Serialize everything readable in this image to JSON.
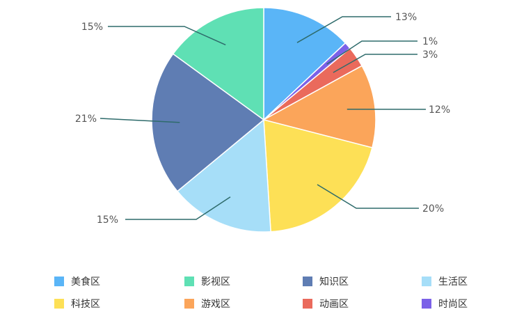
{
  "chart_data": {
    "type": "pie",
    "categories": [
      "美食区",
      "时尚区",
      "动画区",
      "游戏区",
      "科技区",
      "生活区",
      "知识区",
      "影视区"
    ],
    "values": [
      13,
      1,
      3,
      12,
      20,
      15,
      21,
      15
    ],
    "labels": [
      "13%",
      "1%",
      "3%",
      "12%",
      "20%",
      "15%",
      "21%",
      "15%"
    ],
    "colors": [
      "#5ab5f7",
      "#7b61e8",
      "#ea6a5c",
      "#fba55a",
      "#fde056",
      "#a6def8",
      "#5f7db3",
      "#5fe0b4"
    ],
    "legend": {
      "placement": "bottom",
      "items": [
        {
          "name": "美食区",
          "color": "#5ab5f7"
        },
        {
          "name": "影视区",
          "color": "#5fe0b4"
        },
        {
          "name": "知识区",
          "color": "#5f7db3"
        },
        {
          "name": "生活区",
          "color": "#a6def8"
        },
        {
          "name": "科技区",
          "color": "#fde056"
        },
        {
          "name": "游戏区",
          "color": "#fba55a"
        },
        {
          "name": "动画区",
          "color": "#ea6a5c"
        },
        {
          "name": "时尚区",
          "color": "#7b61e8"
        }
      ]
    },
    "leader_line_color": "#2e6b6b"
  }
}
